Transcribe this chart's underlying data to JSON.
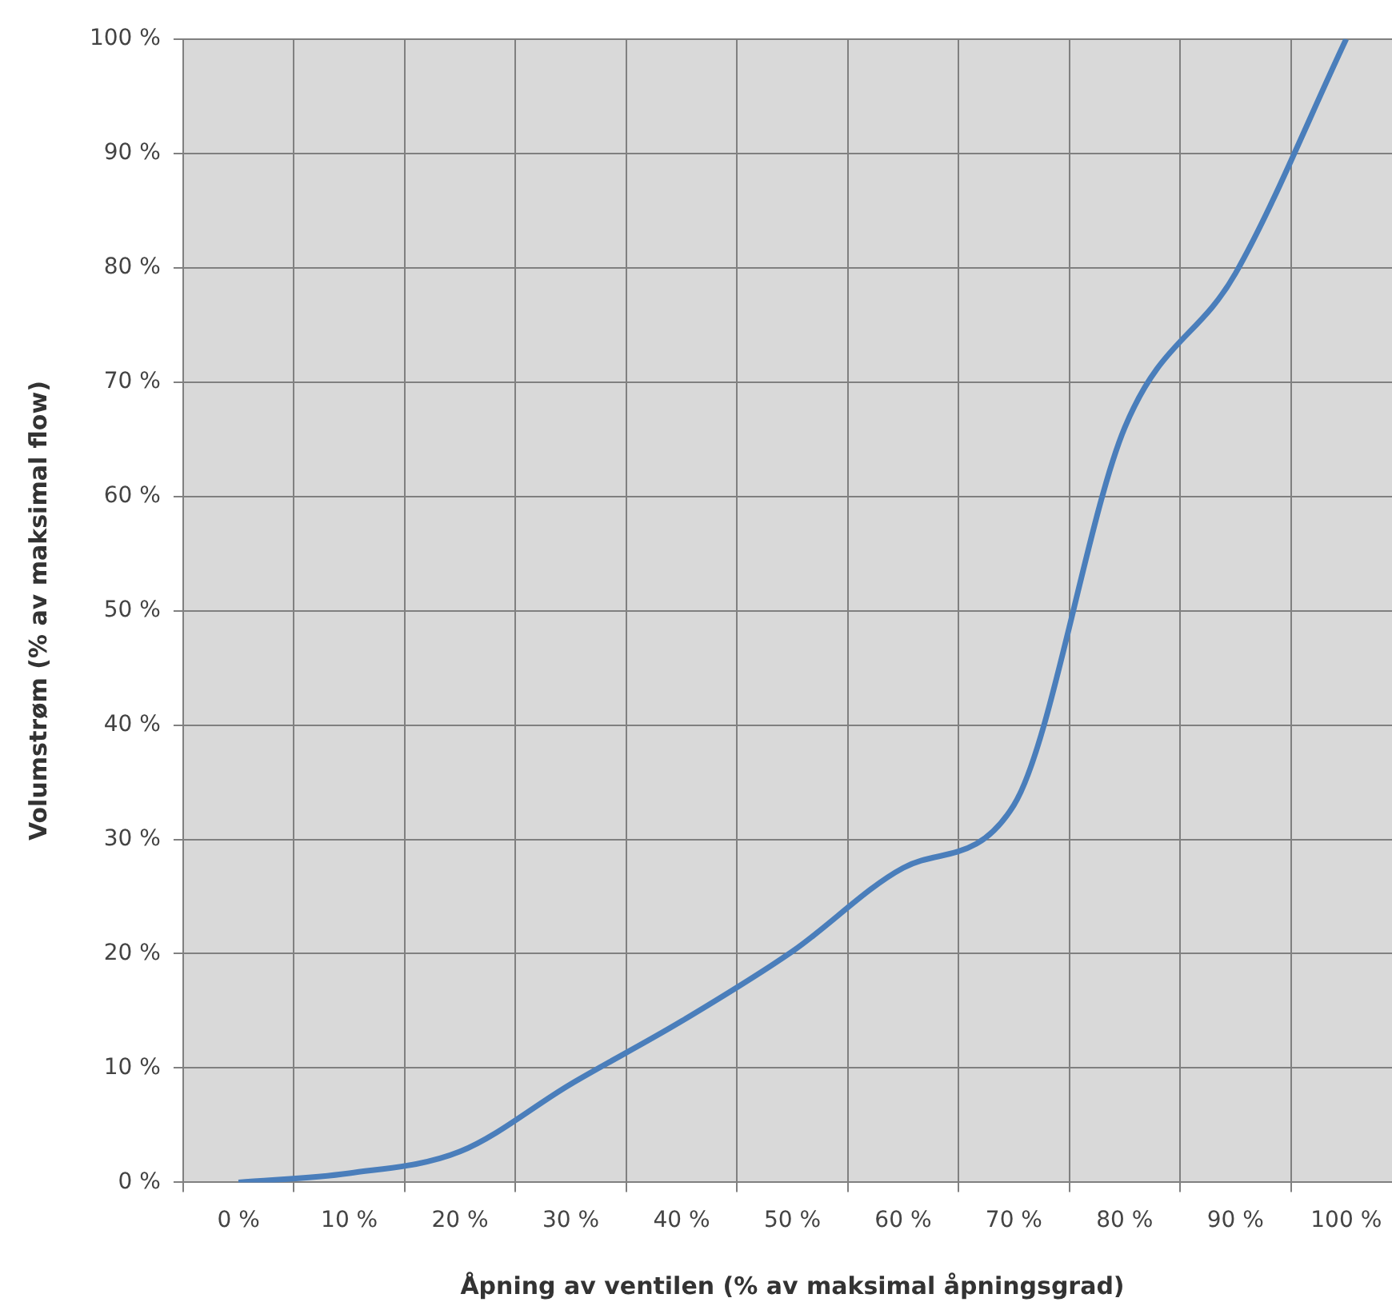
{
  "chart_data": {
    "type": "line",
    "xlabel": "Åpning av ventilen (% av maksimal åpningsgrad)",
    "ylabel": "Volumstrøm (% av maksimal flow)",
    "categories": [
      "0 %",
      "10 %",
      "20 %",
      "30 %",
      "40 %",
      "50 %",
      "60 %",
      "70 %",
      "80 %",
      "90 %",
      "100 %"
    ],
    "series": [
      {
        "color": "#4a7ebb",
        "values": [
          0,
          0.8,
          2.7,
          8.6,
          14.1,
          20.2,
          27.5,
          33,
          66,
          79.5,
          100
        ]
      }
    ],
    "ylim": [
      0,
      100
    ],
    "yticks": [
      {
        "value": 0,
        "label": "0 %"
      },
      {
        "value": 10,
        "label": "10 %"
      },
      {
        "value": 20,
        "label": "20 %"
      },
      {
        "value": 30,
        "label": "30 %"
      },
      {
        "value": 40,
        "label": "40 %"
      },
      {
        "value": 50,
        "label": "50 %"
      },
      {
        "value": 60,
        "label": "60 %"
      },
      {
        "value": 70,
        "label": "70 %"
      },
      {
        "value": 80,
        "label": "80 %"
      },
      {
        "value": 90,
        "label": "90 %"
      },
      {
        "value": 100,
        "label": "100 %"
      }
    ],
    "grid": true,
    "legend": false,
    "marker": "none",
    "line_style": "solid"
  }
}
